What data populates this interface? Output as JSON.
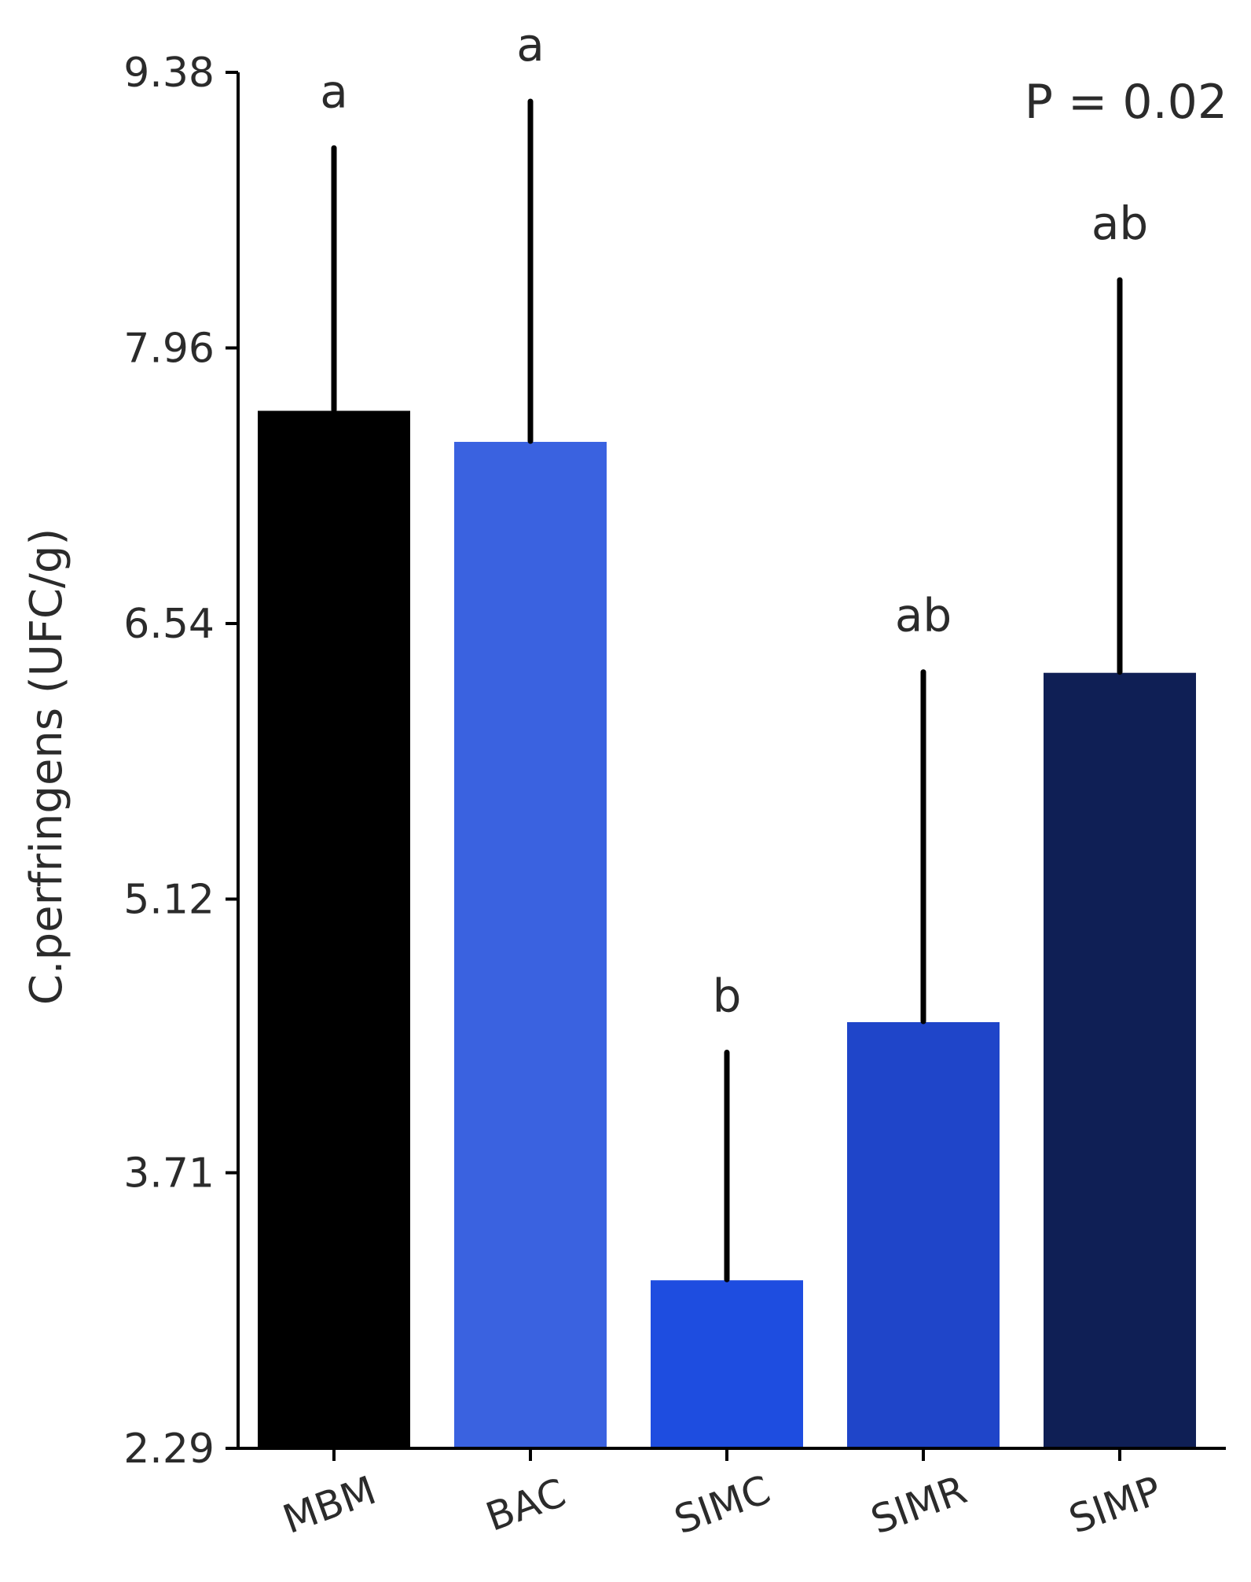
{
  "chart_data": {
    "type": "bar",
    "title": "",
    "xlabel": "",
    "ylabel": "C.perfringens (UFC/g)",
    "ylim": [
      2.29,
      9.38
    ],
    "yticks": [
      "2.29",
      "3.71",
      "5.12",
      "6.54",
      "7.96",
      "9.38"
    ],
    "categories": [
      "MBM",
      "BAC",
      "SIMC",
      "SIMR",
      "SIMP"
    ],
    "values": [
      7.64,
      7.48,
      3.16,
      4.49,
      6.29
    ],
    "error_upper": [
      8.99,
      9.23,
      4.33,
      6.29,
      8.31
    ],
    "significance": [
      "a",
      "a",
      "b",
      "ab",
      "ab"
    ],
    "colors": [
      "#000000",
      "#3a62e0",
      "#1e4de0",
      "#1f45c9",
      "#0f1f55"
    ],
    "annotation": "P = 0.02",
    "grid": false,
    "legend": "none"
  }
}
